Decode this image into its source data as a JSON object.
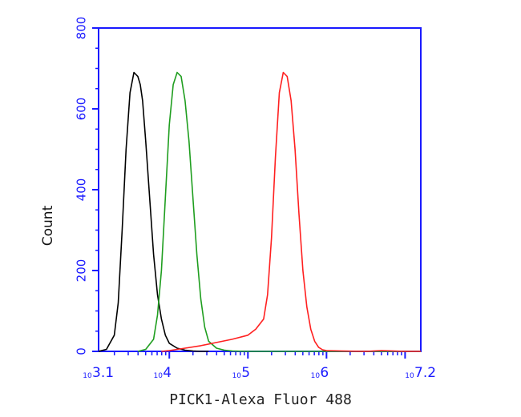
{
  "chart_data": {
    "type": "line",
    "title": "",
    "xlabel": "PICK1-Alexa Fluor 488",
    "ylabel": "Count",
    "x_scale": "log",
    "xlim": [
      3.1,
      7.2
    ],
    "ylim": [
      0,
      800
    ],
    "y_ticks": [
      0,
      200,
      400,
      600,
      800
    ],
    "x_ticks": [
      {
        "value": 3.1,
        "base": "10",
        "exp": "3.1"
      },
      {
        "value": 4,
        "base": "10",
        "exp": "4"
      },
      {
        "value": 5,
        "base": "10",
        "exp": "5"
      },
      {
        "value": 6,
        "base": "10",
        "exp": "6"
      },
      {
        "value": 7.2,
        "base": "10",
        "exp": "7.2"
      }
    ],
    "grid": false,
    "legend": "none",
    "series": [
      {
        "color": "#000000",
        "x": [
          3.1,
          3.2,
          3.3,
          3.35,
          3.4,
          3.45,
          3.5,
          3.55,
          3.6,
          3.63,
          3.66,
          3.7,
          3.75,
          3.8,
          3.85,
          3.9,
          3.95,
          4.0,
          4.1,
          4.2,
          4.3,
          4.4,
          4.5
        ],
        "y": [
          0,
          5,
          40,
          120,
          300,
          500,
          640,
          690,
          680,
          660,
          620,
          520,
          380,
          240,
          140,
          80,
          40,
          20,
          8,
          3,
          1,
          0,
          0
        ]
      },
      {
        "color": "#1f9e1f",
        "x": [
          3.6,
          3.7,
          3.8,
          3.85,
          3.9,
          3.95,
          4.0,
          4.05,
          4.1,
          4.15,
          4.2,
          4.25,
          4.3,
          4.35,
          4.4,
          4.45,
          4.5,
          4.6,
          4.7,
          4.8,
          5.0,
          5.5,
          6.0,
          7.2
        ],
        "y": [
          0,
          5,
          30,
          90,
          200,
          380,
          560,
          660,
          690,
          680,
          620,
          520,
          380,
          240,
          130,
          60,
          25,
          8,
          3,
          1,
          0,
          0,
          0,
          0
        ]
      },
      {
        "color": "#ff2020",
        "x": [
          3.9,
          4.0,
          4.2,
          4.4,
          4.6,
          4.8,
          5.0,
          5.1,
          5.2,
          5.25,
          5.3,
          5.35,
          5.4,
          5.45,
          5.5,
          5.55,
          5.6,
          5.65,
          5.7,
          5.75,
          5.8,
          5.85,
          5.9,
          5.95,
          6.0,
          6.2,
          6.5,
          6.7,
          7.0,
          7.2
        ],
        "y": [
          0,
          2,
          8,
          14,
          22,
          30,
          40,
          55,
          80,
          140,
          280,
          480,
          640,
          690,
          680,
          620,
          500,
          340,
          200,
          110,
          55,
          25,
          10,
          4,
          2,
          1,
          0,
          2,
          0,
          0
        ]
      }
    ]
  }
}
